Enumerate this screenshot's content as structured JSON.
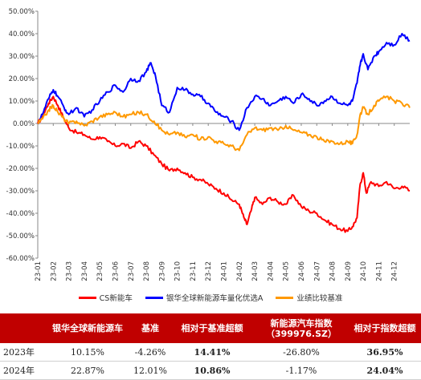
{
  "chart_data": {
    "type": "line",
    "ylim": [
      -0.6,
      0.5
    ],
    "yticks": [
      "-60.00%",
      "-50.00%",
      "-40.00%",
      "-30.00%",
      "-20.00%",
      "-10.00%",
      "0.00%",
      "10.00%",
      "20.00%",
      "30.00%",
      "40.00%",
      "50.00%"
    ],
    "categories": [
      "23-01",
      "23-02",
      "23-03",
      "23-04",
      "23-05",
      "23-06",
      "23-07",
      "23-08",
      "23-09",
      "23-10",
      "23-11",
      "23-12",
      "24-01",
      "24-02",
      "24-03",
      "24-04",
      "24-05",
      "24-06",
      "24-07",
      "24-08",
      "24-09",
      "24-10",
      "24-11",
      "24-12"
    ],
    "x_range": [
      0,
      24
    ],
    "series": [
      {
        "name": "CS新能车",
        "color": "#ff0000",
        "points": [
          [
            0.0,
            0.0
          ],
          [
            0.3,
            0.03
          ],
          [
            0.7,
            0.09
          ],
          [
            1.0,
            0.12
          ],
          [
            1.3,
            0.08
          ],
          [
            1.7,
            0.02
          ],
          [
            2.0,
            -0.02
          ],
          [
            2.5,
            -0.04
          ],
          [
            3.0,
            -0.05
          ],
          [
            3.5,
            -0.07
          ],
          [
            4.0,
            -0.06
          ],
          [
            4.5,
            -0.08
          ],
          [
            5.0,
            -0.1
          ],
          [
            5.5,
            -0.09
          ],
          [
            6.0,
            -0.11
          ],
          [
            6.5,
            -0.08
          ],
          [
            7.0,
            -0.1
          ],
          [
            7.5,
            -0.14
          ],
          [
            8.0,
            -0.18
          ],
          [
            8.5,
            -0.21
          ],
          [
            9.0,
            -0.2
          ],
          [
            9.5,
            -0.22
          ],
          [
            10.0,
            -0.24
          ],
          [
            10.5,
            -0.25
          ],
          [
            11.0,
            -0.27
          ],
          [
            11.5,
            -0.29
          ],
          [
            12.0,
            -0.31
          ],
          [
            12.5,
            -0.34
          ],
          [
            13.0,
            -0.36
          ],
          [
            13.3,
            -0.42
          ],
          [
            13.5,
            -0.45
          ],
          [
            13.8,
            -0.38
          ],
          [
            14.0,
            -0.33
          ],
          [
            14.5,
            -0.36
          ],
          [
            15.0,
            -0.33
          ],
          [
            15.5,
            -0.35
          ],
          [
            16.0,
            -0.36
          ],
          [
            16.5,
            -0.32
          ],
          [
            17.0,
            -0.37
          ],
          [
            17.5,
            -0.39
          ],
          [
            18.0,
            -0.4
          ],
          [
            18.5,
            -0.43
          ],
          [
            19.0,
            -0.45
          ],
          [
            19.5,
            -0.47
          ],
          [
            20.0,
            -0.48
          ],
          [
            20.3,
            -0.46
          ],
          [
            20.6,
            -0.42
          ],
          [
            20.8,
            -0.27
          ],
          [
            21.0,
            -0.22
          ],
          [
            21.2,
            -0.31
          ],
          [
            21.5,
            -0.26
          ],
          [
            22.0,
            -0.28
          ],
          [
            22.5,
            -0.26
          ],
          [
            23.0,
            -0.29
          ],
          [
            23.5,
            -0.28
          ],
          [
            24.0,
            -0.3
          ]
        ]
      },
      {
        "name": "银华全球新能源车量化优选A",
        "color": "#0000ff",
        "points": [
          [
            0.0,
            0.0
          ],
          [
            0.3,
            0.04
          ],
          [
            0.7,
            0.11
          ],
          [
            1.0,
            0.15
          ],
          [
            1.3,
            0.12
          ],
          [
            1.7,
            0.07
          ],
          [
            2.0,
            0.04
          ],
          [
            2.5,
            0.07
          ],
          [
            3.0,
            0.03
          ],
          [
            3.5,
            0.06
          ],
          [
            4.0,
            0.1
          ],
          [
            4.5,
            0.14
          ],
          [
            5.0,
            0.17
          ],
          [
            5.5,
            0.14
          ],
          [
            6.0,
            0.2
          ],
          [
            6.5,
            0.19
          ],
          [
            7.0,
            0.23
          ],
          [
            7.3,
            0.27
          ],
          [
            7.6,
            0.21
          ],
          [
            8.0,
            0.08
          ],
          [
            8.5,
            0.05
          ],
          [
            9.0,
            0.16
          ],
          [
            9.5,
            0.15
          ],
          [
            10.0,
            0.13
          ],
          [
            10.5,
            0.12
          ],
          [
            11.0,
            0.09
          ],
          [
            11.5,
            0.05
          ],
          [
            12.0,
            0.03
          ],
          [
            12.5,
            0.01
          ],
          [
            13.0,
            -0.03
          ],
          [
            13.5,
            0.07
          ],
          [
            14.0,
            0.12
          ],
          [
            14.5,
            0.11
          ],
          [
            15.0,
            0.08
          ],
          [
            15.5,
            0.1
          ],
          [
            16.0,
            0.12
          ],
          [
            16.5,
            0.09
          ],
          [
            17.0,
            0.13
          ],
          [
            17.5,
            0.11
          ],
          [
            18.0,
            0.08
          ],
          [
            18.5,
            0.1
          ],
          [
            19.0,
            0.12
          ],
          [
            19.5,
            0.09
          ],
          [
            20.0,
            0.08
          ],
          [
            20.3,
            0.1
          ],
          [
            20.6,
            0.18
          ],
          [
            20.8,
            0.26
          ],
          [
            21.0,
            0.31
          ],
          [
            21.3,
            0.24
          ],
          [
            21.7,
            0.3
          ],
          [
            22.0,
            0.32
          ],
          [
            22.5,
            0.36
          ],
          [
            23.0,
            0.35
          ],
          [
            23.5,
            0.4
          ],
          [
            24.0,
            0.37
          ]
        ]
      },
      {
        "name": "业绩比较基准",
        "color": "#ff9900",
        "points": [
          [
            0.0,
            0.0
          ],
          [
            0.3,
            0.02
          ],
          [
            0.7,
            0.06
          ],
          [
            1.0,
            0.08
          ],
          [
            1.3,
            0.05
          ],
          [
            1.7,
            0.02
          ],
          [
            2.0,
            0.0
          ],
          [
            2.5,
            0.01
          ],
          [
            3.0,
            -0.01
          ],
          [
            3.5,
            0.01
          ],
          [
            4.0,
            0.03
          ],
          [
            4.5,
            0.04
          ],
          [
            5.0,
            0.05
          ],
          [
            5.5,
            0.03
          ],
          [
            6.0,
            0.04
          ],
          [
            6.5,
            0.05
          ],
          [
            7.0,
            0.04
          ],
          [
            7.5,
            0.01
          ],
          [
            8.0,
            -0.03
          ],
          [
            8.5,
            -0.05
          ],
          [
            9.0,
            -0.04
          ],
          [
            9.5,
            -0.06
          ],
          [
            10.0,
            -0.05
          ],
          [
            10.5,
            -0.07
          ],
          [
            11.0,
            -0.06
          ],
          [
            11.5,
            -0.08
          ],
          [
            12.0,
            -0.09
          ],
          [
            12.5,
            -0.1
          ],
          [
            13.0,
            -0.12
          ],
          [
            13.5,
            -0.05
          ],
          [
            14.0,
            -0.02
          ],
          [
            14.5,
            -0.03
          ],
          [
            15.0,
            -0.02
          ],
          [
            15.5,
            -0.03
          ],
          [
            16.0,
            -0.01
          ],
          [
            16.5,
            -0.03
          ],
          [
            17.0,
            -0.04
          ],
          [
            17.5,
            -0.05
          ],
          [
            18.0,
            -0.06
          ],
          [
            18.5,
            -0.08
          ],
          [
            19.0,
            -0.08
          ],
          [
            19.5,
            -0.09
          ],
          [
            20.0,
            -0.08
          ],
          [
            20.3,
            -0.09
          ],
          [
            20.6,
            -0.05
          ],
          [
            20.8,
            0.04
          ],
          [
            21.0,
            0.07
          ],
          [
            21.3,
            0.04
          ],
          [
            21.7,
            0.08
          ],
          [
            22.0,
            0.1
          ],
          [
            22.5,
            0.12
          ],
          [
            23.0,
            0.1
          ],
          [
            23.5,
            0.09
          ],
          [
            24.0,
            0.07
          ]
        ]
      }
    ],
    "grid": false,
    "legend_position": "bottom"
  },
  "table": {
    "headers": [
      "",
      "银华全球新能源车",
      "基准",
      "相对于基准超额",
      "新能源汽车指数\n（399976.SZ）",
      "相对于指数超额"
    ],
    "rows": [
      [
        "2023年",
        "10.15%",
        "-4.26%",
        "14.41%",
        "-26.80%",
        "36.95%"
      ],
      [
        "2024年",
        "22.87%",
        "12.01%",
        "10.86%",
        "-1.17%",
        "24.04%"
      ]
    ],
    "bold_columns": [
      3,
      5
    ]
  }
}
